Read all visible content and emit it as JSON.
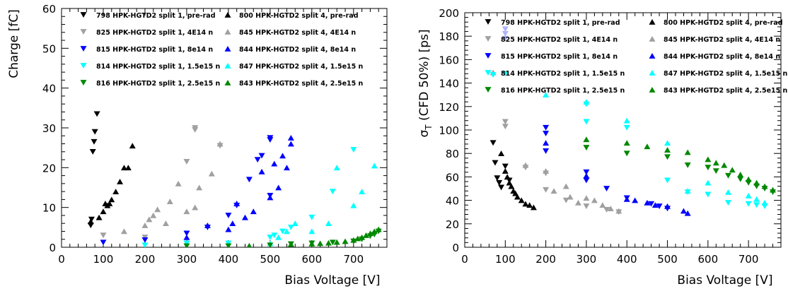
{
  "chart_data": [
    {
      "type": "scatter",
      "title": "",
      "xlabel": "Bias Voltage [V]",
      "ylabel": "Charge [fC]",
      "xlim": [
        0,
        780
      ],
      "ylim": [
        0,
        60
      ],
      "xticks": [
        0,
        100,
        200,
        300,
        400,
        500,
        600,
        700
      ],
      "yticks": [
        0,
        10,
        20,
        30,
        40,
        50,
        60
      ],
      "grid": false,
      "legend_position": "top",
      "series": [
        {
          "name": "798 HPK-HGTD2 split 1, pre-rad",
          "marker": "triangle-down",
          "color": "#000000",
          "x": [
            70,
            72,
            75,
            78,
            80,
            85
          ],
          "y": [
            5.5,
            7.0,
            24,
            26.5,
            29,
            33.5
          ]
        },
        {
          "name": "800 HPK-HGTD2 split 4, pre-rad",
          "marker": "triangle-up",
          "color": "#000000",
          "x": [
            70,
            90,
            100,
            105,
            110,
            115,
            120,
            130,
            140,
            150,
            160,
            170
          ],
          "y": [
            6.5,
            7.5,
            9,
            11,
            10.5,
            11,
            12,
            14,
            16.5,
            20,
            20,
            25.5
          ]
        },
        {
          "name": "825 HPK-HGTD2 split 1, 4E14 n",
          "marker": "triangle-down",
          "color": "#a0a0a0",
          "x": [
            100,
            200,
            300,
            320,
            320,
            380
          ],
          "y": [
            3,
            2.5,
            21.5,
            29.5,
            30,
            25.5
          ]
        },
        {
          "name": "845 HPK-HGTD2 split 4, 4E14 n",
          "marker": "triangle-up",
          "color": "#a0a0a0",
          "x": [
            150,
            200,
            210,
            220,
            230,
            250,
            260,
            280,
            300,
            320,
            330,
            360,
            380
          ],
          "y": [
            4,
            5.5,
            7,
            8,
            9.5,
            6,
            11.5,
            16,
            9,
            10,
            15,
            18.5,
            26
          ]
        },
        {
          "name": "815 HPK-HGTD2 split 1, 8e14 n",
          "marker": "triangle-down",
          "color": "#0000ff",
          "x": [
            100,
            200,
            300,
            350,
            400,
            420,
            450,
            470,
            480,
            500,
            500,
            500
          ],
          "y": [
            1.2,
            1.8,
            3.5,
            5,
            8,
            10.5,
            17,
            22,
            23,
            27,
            27.5,
            13
          ]
        },
        {
          "name": "844 HPK-HGTD2 split 4, 8e14 n",
          "marker": "triangle-up",
          "color": "#0000ff",
          "x": [
            300,
            350,
            400,
            410,
            420,
            440,
            460,
            480,
            500,
            510,
            520,
            530,
            540,
            550,
            550
          ],
          "y": [
            2.5,
            5.5,
            4.5,
            6,
            11,
            7.5,
            9,
            19,
            12.5,
            21,
            15,
            23,
            20,
            27.5,
            26
          ]
        },
        {
          "name": "814 HPK-HGTD2 split 1, 1.5e15 n",
          "marker": "triangle-down",
          "color": "#00ffff",
          "x": [
            200,
            300,
            400,
            500,
            510,
            530,
            550,
            600,
            650,
            700
          ],
          "y": [
            0.5,
            1,
            1,
            2.5,
            3,
            4,
            5,
            7.5,
            14,
            24.5
          ]
        },
        {
          "name": "847 HPK-HGTD2 split 4, 1.5e15 n",
          "marker": "triangle-up",
          "color": "#00ffff",
          "x": [
            500,
            520,
            540,
            560,
            600,
            640,
            660,
            700,
            720,
            750
          ],
          "y": [
            1,
            2.5,
            4,
            6,
            4,
            6,
            20,
            10.5,
            14,
            20.5
          ]
        },
        {
          "name": "816 HPK-HGTD2 split 1, 2.5e15 n",
          "marker": "triangle-down",
          "color": "#008800",
          "x": [
            300,
            400,
            500,
            550,
            600,
            650,
            700,
            720,
            740,
            750,
            760
          ],
          "y": [
            0.3,
            0.3,
            0.5,
            0.8,
            1,
            1.2,
            1.5,
            2,
            2.8,
            3.2,
            4
          ]
        },
        {
          "name": "843 HPK-HGTD2 split 4, 2.5e15 n",
          "marker": "triangle-up",
          "color": "#008800",
          "x": [
            450,
            550,
            600,
            620,
            640,
            660,
            680,
            700,
            710,
            720,
            730,
            740,
            750,
            760
          ],
          "y": [
            0.4,
            0.8,
            0.9,
            1,
            1.1,
            1.3,
            1.5,
            1.8,
            2.2,
            2.5,
            3,
            3.5,
            4,
            4.5
          ]
        }
      ]
    },
    {
      "type": "scatter",
      "title": "",
      "xlabel": "Bias Voltage [V]",
      "ylabel": "σT (CFD 50%) [ps]",
      "ylabel_main": "σ",
      "ylabel_sub": "T",
      "ylabel_rest": " (CFD 50%) [ps]",
      "xlim": [
        0,
        780
      ],
      "ylim": [
        0,
        200
      ],
      "xticks": [
        0,
        100,
        200,
        300,
        400,
        500,
        600,
        700
      ],
      "yticks": [
        0,
        20,
        40,
        60,
        80,
        100,
        120,
        140,
        160,
        180,
        200
      ],
      "grid": false,
      "legend_position": "top",
      "series": [
        {
          "name": "798 HPK-HGTD2 split 1, pre-rad",
          "marker": "triangle-down",
          "color": "#000000",
          "x": [
            70,
            75,
            80,
            85,
            90,
            100,
            110
          ],
          "y": [
            89,
            72,
            59,
            55,
            51,
            69,
            57
          ]
        },
        {
          "name": "800 HPK-HGTD2 split 4, pre-rad",
          "marker": "triangle-up",
          "color": "#000000",
          "x": [
            90,
            100,
            105,
            110,
            115,
            120,
            125,
            130,
            140,
            150,
            160,
            170
          ],
          "y": [
            80,
            65,
            60,
            55,
            52,
            48,
            46,
            43,
            40,
            37,
            36,
            34
          ]
        },
        {
          "name": "825 HPK-HGTD2 split 1, 4E14 n",
          "marker": "triangle-down",
          "color": "#a0a0a0",
          "x": [
            100,
            100,
            150,
            200,
            200,
            250,
            300,
            350,
            380
          ],
          "y": [
            107,
            103,
            68,
            63,
            49,
            40,
            35,
            32,
            30
          ]
        },
        {
          "name": "845 HPK-HGTD2 split 4, 4E14 n",
          "marker": "triangle-up",
          "color": "#a0a0a0",
          "x": [
            70,
            150,
            200,
            220,
            250,
            260,
            280,
            300,
            320,
            340,
            360,
            380
          ],
          "y": [
            149,
            70,
            65,
            48,
            52,
            43,
            38,
            42,
            40,
            36,
            33,
            31
          ]
        },
        {
          "name": "815 HPK-HGTD2 split 1, 8e14 n",
          "marker": "triangle-down",
          "color": "#0000ff",
          "x": [
            200,
            200,
            200,
            300,
            300,
            350,
            400,
            460,
            480,
            500
          ],
          "y": [
            102,
            97,
            82,
            64,
            57,
            50,
            42,
            37,
            35,
            33
          ]
        },
        {
          "name": "844 HPK-HGTD2 split 4, 8e14 n",
          "marker": "triangle-up",
          "color": "#0000ff",
          "x": [
            200,
            300,
            400,
            420,
            450,
            470,
            500,
            540,
            550
          ],
          "y": [
            89,
            61,
            41,
            40,
            38,
            36,
            35,
            31,
            29
          ]
        },
        {
          "name": "814 HPK-HGTD2 split 1, 1.5e15 n",
          "marker": "triangle-down",
          "color": "#00ffff",
          "x": [
            70,
            100,
            300,
            300,
            400,
            500,
            550,
            600,
            650,
            700,
            720,
            740
          ],
          "y": [
            147,
            148,
            122,
            107,
            102,
            57,
            47,
            45,
            38,
            37,
            36,
            35
          ]
        },
        {
          "name": "847 HPK-HGTD2 split 4, 1.5e15 n",
          "marker": "triangle-up",
          "color": "#00ffff",
          "x": [
            200,
            300,
            400,
            500,
            550,
            600,
            650,
            700,
            720,
            740
          ],
          "y": [
            130,
            124,
            108,
            89,
            48,
            55,
            47,
            44,
            41,
            38
          ]
        },
        {
          "name": "816 HPK-HGTD2 split 1, 2.5e15 n",
          "marker": "triangle-down",
          "color": "#008800",
          "x": [
            300,
            400,
            500,
            550,
            600,
            620,
            650,
            680,
            700,
            720,
            740,
            760
          ],
          "y": [
            85,
            80,
            77,
            70,
            68,
            65,
            61,
            58,
            55,
            52,
            50,
            47
          ]
        },
        {
          "name": "843 HPK-HGTD2 split 4, 2.5e15 n",
          "marker": "triangle-up",
          "color": "#008800",
          "x": [
            300,
            400,
            450,
            500,
            550,
            600,
            620,
            640,
            660,
            680,
            700,
            720,
            740,
            760
          ],
          "y": [
            92,
            89,
            86,
            83,
            81,
            75,
            72,
            70,
            66,
            62,
            58,
            55,
            52,
            49
          ]
        },
        {
          "name": "",
          "marker": "triangle-down",
          "color": "#b0b4ff",
          "x": [
            100,
            100,
            100
          ],
          "y": [
            186,
            182,
            178
          ]
        }
      ]
    }
  ]
}
